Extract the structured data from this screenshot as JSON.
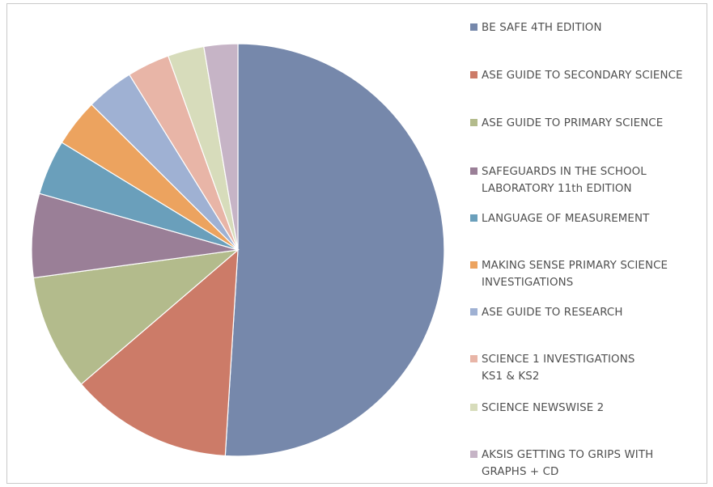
{
  "chart_data": {
    "type": "pie",
    "title": "",
    "legend_position": "right",
    "series": [
      {
        "values": [
          52,
          13,
          9.3,
          6.7,
          4.4,
          3.8,
          3.8,
          3.4,
          2.9,
          2.7
        ]
      }
    ],
    "categories": [
      "BE SAFE 4TH EDITION",
      "ASE GUIDE TO SECONDARY SCIENCE",
      "ASE GUIDE TO PRIMARY SCIENCE",
      "SAFEGUARDS IN THE SCHOOL\nLABORATORY 11th EDITION",
      "LANGUAGE OF MEASUREMENT",
      "MAKING SENSE PRIMARY SCIENCE\nINVESTIGATIONS",
      "ASE GUIDE TO RESEARCH",
      "SCIENCE 1 INVESTIGATIONS\nKS1 & KS2",
      "SCIENCE NEWSWISE 2",
      "AKSIS GETTING TO GRIPS WITH\nGRAPHS + CD"
    ],
    "colors": [
      "#7688ab",
      "#cc7b68",
      "#b3bb8c",
      "#9a7f97",
      "#6a9fbb",
      "#eca35f",
      "#9fb1d3",
      "#e8b5a7",
      "#d7dcbb",
      "#c6b4c6"
    ]
  }
}
